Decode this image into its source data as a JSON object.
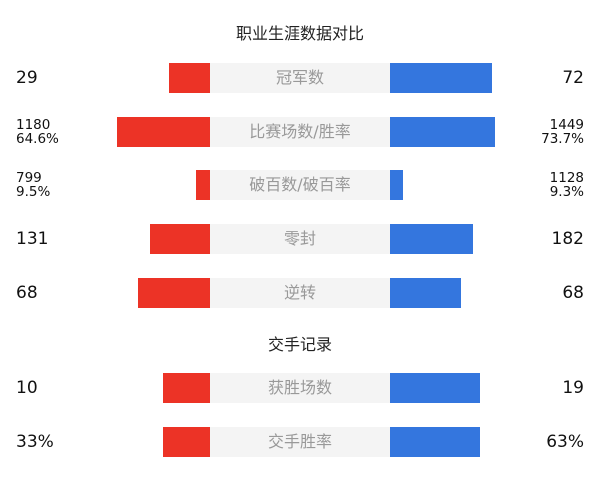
{
  "colors": {
    "left": "#ec3326",
    "right": "#3476de",
    "label_bg": "#f4f4f4"
  },
  "chart_data": {
    "type": "bar",
    "sections": [
      {
        "title": "职业生涯数据对比",
        "rows": [
          {
            "label": "冠军数",
            "left": [
              "29"
            ],
            "right": [
              "72"
            ],
            "left_fill": 0.39,
            "right_fill": 0.97
          },
          {
            "label": "比赛场数/胜率",
            "left": [
              "1180",
              "64.6%"
            ],
            "right": [
              "1449",
              "73.7%"
            ],
            "left_fill": 0.886,
            "right_fill": 1.0
          },
          {
            "label": "破百数/破百率",
            "left": [
              "799",
              "9.5%"
            ],
            "right": [
              "1128",
              "9.3%"
            ],
            "left_fill": 0.133,
            "right_fill": 0.124
          },
          {
            "label": "零封",
            "left": [
              "131"
            ],
            "right": [
              "182"
            ],
            "left_fill": 0.571,
            "right_fill": 0.79
          },
          {
            "label": "逆转",
            "left": [
              "68"
            ],
            "right": [
              "68"
            ],
            "left_fill": 0.686,
            "right_fill": 0.676
          }
        ]
      },
      {
        "title": "交手记录",
        "rows": [
          {
            "label": "获胜场数",
            "left": [
              "10"
            ],
            "right": [
              "19"
            ],
            "left_fill": 0.448,
            "right_fill": 0.857
          },
          {
            "label": "交手胜率",
            "left": [
              "33%"
            ],
            "right": [
              "63%"
            ],
            "left_fill": 0.448,
            "right_fill": 0.857
          }
        ]
      }
    ]
  }
}
